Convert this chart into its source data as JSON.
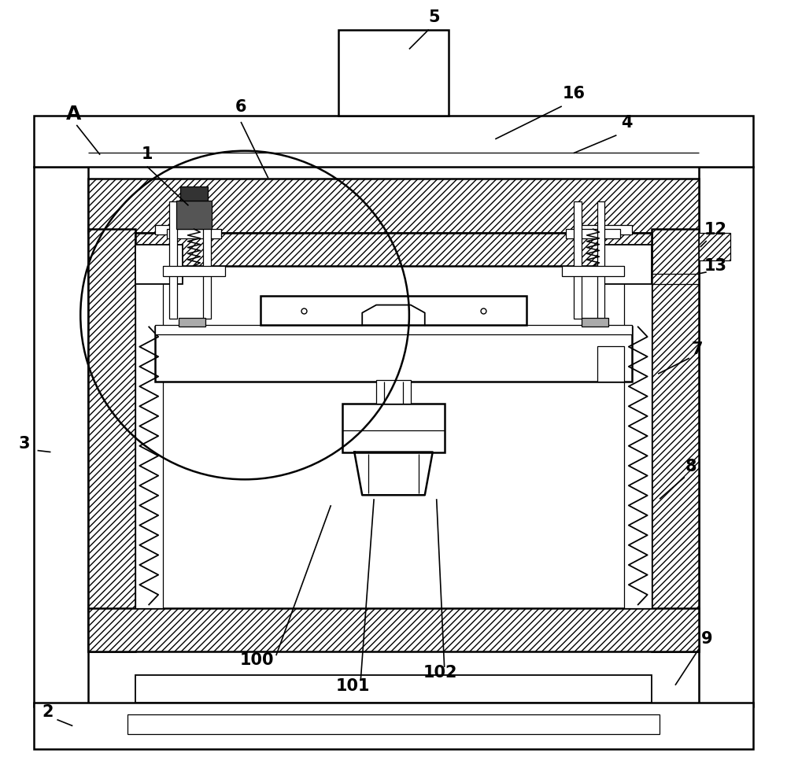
{
  "bg_color": "#ffffff",
  "line_color": "#000000",
  "figsize": [
    10.0,
    9.85
  ],
  "dpi": 100,
  "lw_main": 1.8,
  "lw_med": 1.3,
  "lw_thin": 0.9,
  "hatch_density": "////"
}
